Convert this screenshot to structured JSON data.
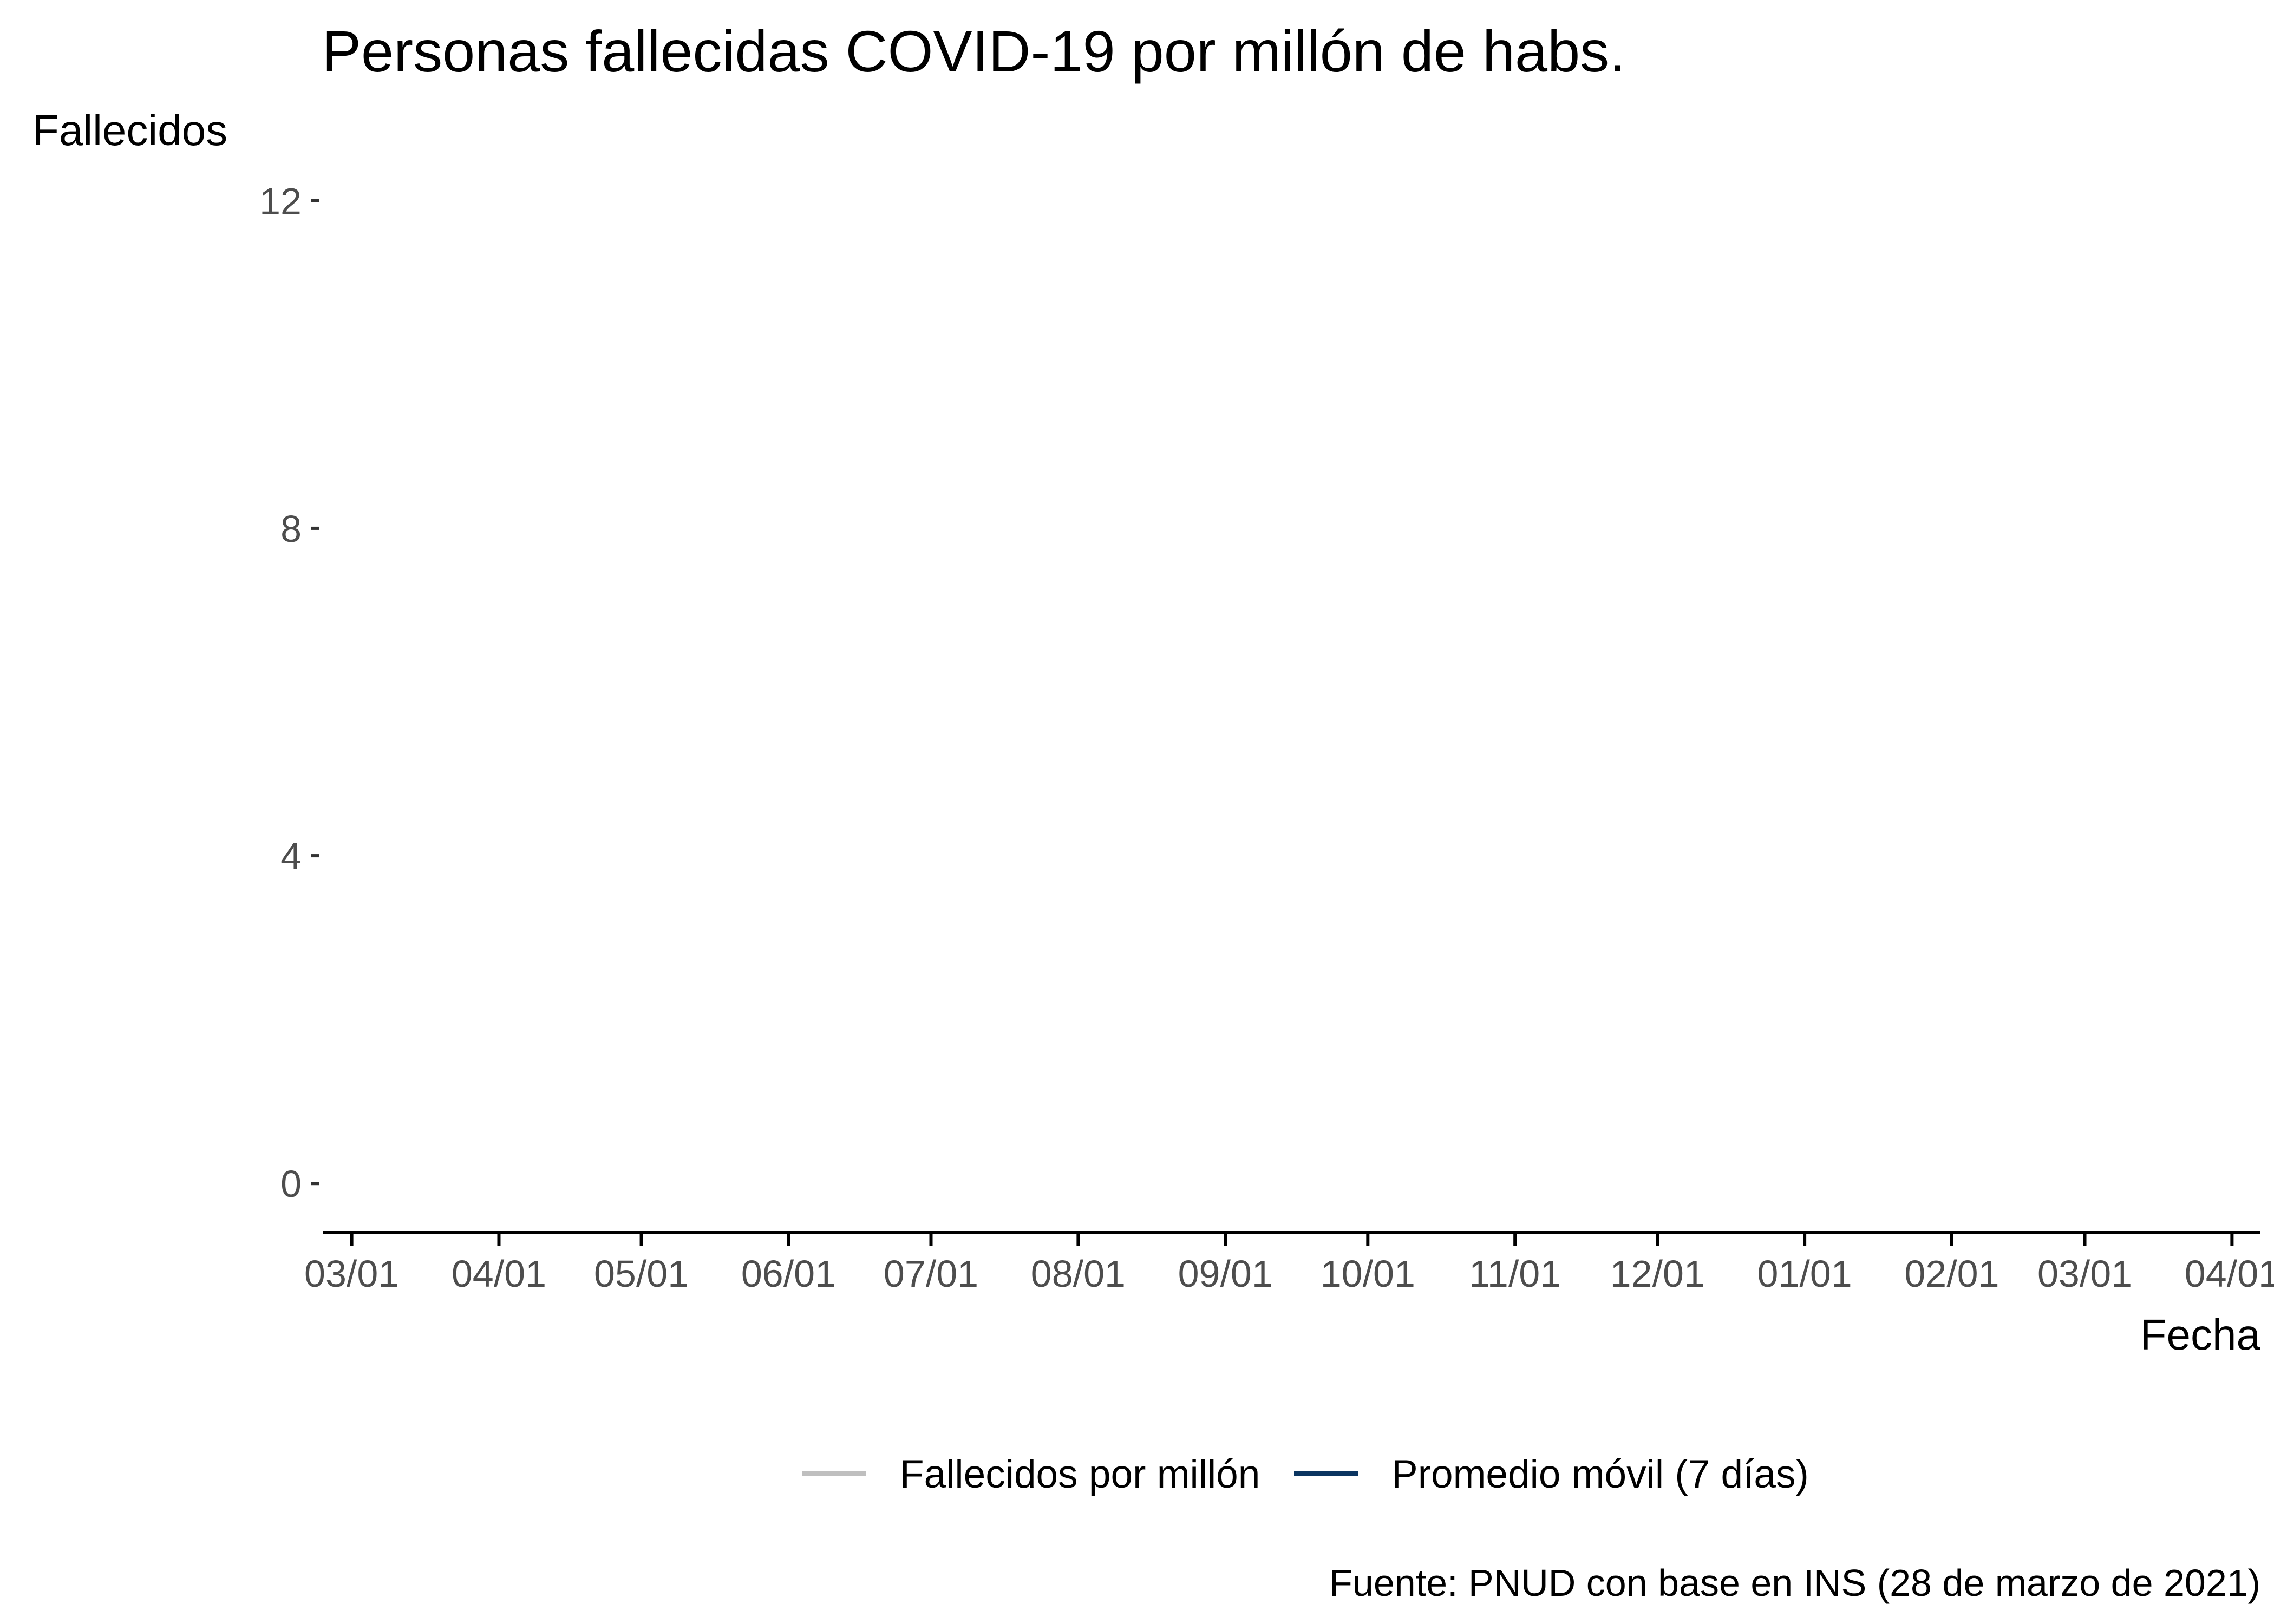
{
  "chart_data": {
    "type": "line",
    "title": "Personas fallecidas COVID-19 por millón de habs.",
    "xlabel": "Fecha",
    "ylabel": "Fallecidos",
    "x_tick_labels": [
      "03/01",
      "04/01",
      "05/01",
      "06/01",
      "07/01",
      "08/01",
      "09/01",
      "10/01",
      "11/01",
      "12/01",
      "01/01",
      "02/01",
      "03/01",
      "04/01"
    ],
    "x_tick_dates": [
      "2020-03-01",
      "2020-04-01",
      "2020-05-01",
      "2020-06-01",
      "2020-07-01",
      "2020-08-01",
      "2020-09-01",
      "2020-10-01",
      "2020-11-01",
      "2020-12-01",
      "2021-01-01",
      "2021-02-01",
      "2021-03-01",
      "2021-04-01"
    ],
    "xlim": [
      "2020-02-24",
      "2021-04-07"
    ],
    "y_ticks": [
      0,
      4,
      8,
      12
    ],
    "ylim": [
      -0.6,
      12.6
    ],
    "grid": false,
    "legend_position": "bottom",
    "series": [
      {
        "name": "Fallecidos por millón",
        "color": "#bfbfbf",
        "values": []
      },
      {
        "name": "Promedio móvil (7 días)",
        "color": "#0b3561",
        "values": []
      }
    ],
    "caption": "Fuente: PNUD con base en INS (28 de marzo de 2021)"
  }
}
